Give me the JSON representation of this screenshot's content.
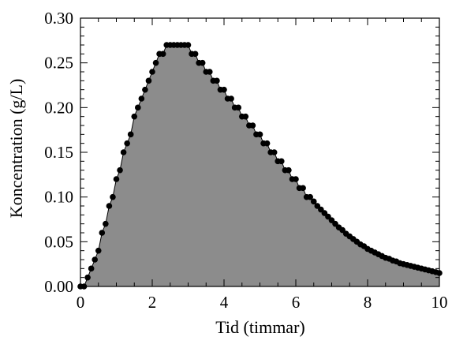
{
  "chart_data": {
    "type": "area",
    "title": "",
    "xlabel": "Tid (timmar)",
    "ylabel": "Koncentration (g/L)",
    "xlim": [
      0,
      10
    ],
    "ylim": [
      0,
      0.3
    ],
    "x_ticks": [
      "0",
      "2",
      "4",
      "6",
      "8",
      "10"
    ],
    "y_ticks": [
      "0.00",
      "0.05",
      "0.10",
      "0.15",
      "0.20",
      "0.25",
      "0.30"
    ],
    "grid": false,
    "legend": "none",
    "series": [
      {
        "x": [
          0.0,
          0.1,
          0.2,
          0.3,
          0.4,
          0.5,
          0.6,
          0.7,
          0.8,
          0.9,
          1.0,
          1.1,
          1.2,
          1.3,
          1.4,
          1.5,
          1.6,
          1.7,
          1.8,
          1.9,
          2.0,
          2.1,
          2.2,
          2.3,
          2.4,
          2.5,
          2.6,
          2.7,
          2.8,
          2.9,
          3.0,
          3.1,
          3.2,
          3.3,
          3.4,
          3.5,
          3.6,
          3.7,
          3.8,
          3.9,
          4.0,
          4.1,
          4.2,
          4.3,
          4.4,
          4.5,
          4.6,
          4.7,
          4.8,
          4.9,
          5.0,
          5.1,
          5.2,
          5.3,
          5.4,
          5.5,
          5.6,
          5.7,
          5.8,
          5.9,
          6.0,
          6.1,
          6.2,
          6.3,
          6.4,
          6.5,
          6.6,
          6.7,
          6.8,
          6.9,
          7.0,
          7.1,
          7.2,
          7.3,
          7.4,
          7.5,
          7.6,
          7.7,
          7.8,
          7.9,
          8.0,
          8.1,
          8.2,
          8.3,
          8.4,
          8.5,
          8.6,
          8.7,
          8.8,
          8.9,
          9.0,
          9.1,
          9.2,
          9.3,
          9.4,
          9.5,
          9.6,
          9.7,
          9.8,
          9.9,
          10.0
        ],
        "y": [
          0.0,
          0.0,
          0.01,
          0.02,
          0.03,
          0.04,
          0.06,
          0.07,
          0.09,
          0.1,
          0.12,
          0.13,
          0.15,
          0.16,
          0.17,
          0.19,
          0.2,
          0.21,
          0.22,
          0.23,
          0.24,
          0.25,
          0.26,
          0.26,
          0.27,
          0.27,
          0.27,
          0.27,
          0.27,
          0.27,
          0.27,
          0.26,
          0.26,
          0.25,
          0.25,
          0.24,
          0.24,
          0.23,
          0.23,
          0.22,
          0.22,
          0.21,
          0.21,
          0.2,
          0.2,
          0.19,
          0.19,
          0.18,
          0.18,
          0.17,
          0.17,
          0.16,
          0.16,
          0.15,
          0.15,
          0.14,
          0.14,
          0.13,
          0.13,
          0.12,
          0.12,
          0.11,
          0.11,
          0.1,
          0.1,
          0.095,
          0.09,
          0.086,
          0.082,
          0.078,
          0.074,
          0.07,
          0.066,
          0.063,
          0.059,
          0.056,
          0.053,
          0.05,
          0.047,
          0.045,
          0.042,
          0.04,
          0.038,
          0.036,
          0.034,
          0.032,
          0.031,
          0.029,
          0.028,
          0.026,
          0.025,
          0.024,
          0.023,
          0.022,
          0.021,
          0.02,
          0.019,
          0.018,
          0.017,
          0.016,
          0.015
        ]
      }
    ],
    "colors": {
      "fill": "#8c8c8c",
      "marker": "#000000",
      "line": "#000000",
      "axis": "#000000"
    }
  }
}
